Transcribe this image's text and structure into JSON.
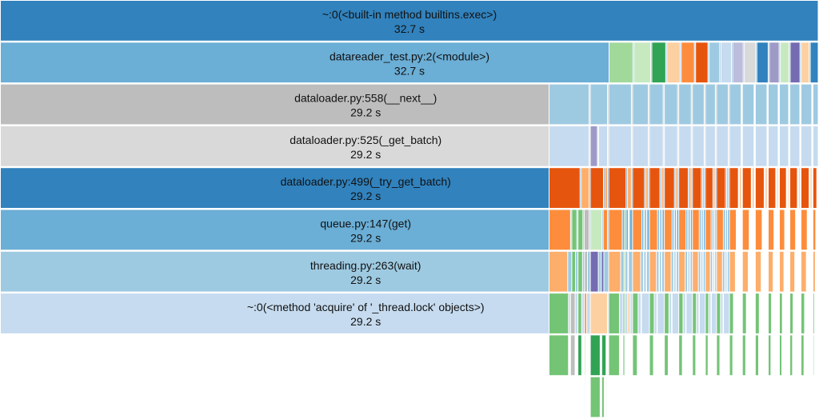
{
  "chart_data": {
    "type": "icicle",
    "title": "",
    "unit": "s",
    "total_time": 32.7,
    "levels": [
      {
        "name": "~:0(<built-in method builtins.exec>)",
        "time": 32.7,
        "label_time": "32.7 s",
        "color": "#3182bd"
      },
      {
        "name": "datareader_test.py:2(<module>)",
        "time": 32.7,
        "label_time": "32.7 s",
        "color": "#6baed6"
      },
      {
        "name": "dataloader.py:558(__next__)",
        "time": 29.2,
        "label_time": "29.2 s",
        "color": "#bdbdbd"
      },
      {
        "name": "dataloader.py:525(_get_batch)",
        "time": 29.2,
        "label_time": "29.2 s",
        "color": "#d9d9d9"
      },
      {
        "name": "dataloader.py:499(_try_get_batch)",
        "time": 29.2,
        "label_time": "29.2 s",
        "color": "#3182bd"
      },
      {
        "name": "queue.py:147(get)",
        "time": 29.2,
        "label_time": "29.2 s",
        "color": "#6baed6"
      },
      {
        "name": "threading.py:263(wait)",
        "time": 29.2,
        "label_time": "29.2 s",
        "color": "#9ecae1"
      },
      {
        "name": "~:0(<method 'acquire' of '_thread.lock' objects>)",
        "time": 29.2,
        "label_time": "29.2 s",
        "color": "#c6dbef"
      }
    ],
    "module_siblings_colors": [
      "#a1d99b",
      "#c7e9c0",
      "#31a354",
      "#fdd0a2",
      "#fd8d3c",
      "#e6550d",
      "#9ecae1",
      "#c6dbef",
      "#bcbddc",
      "#d9d9d9",
      "#3182bd",
      "#9e9ac8",
      "#c7e9c0",
      "#756bb1",
      "#fdd0a2",
      "#3182bd"
    ],
    "module_siblings_times": [
      0.96,
      0.68,
      0.58,
      0.55,
      0.55,
      0.52,
      0.45,
      0.45,
      0.45,
      0.48,
      0.48,
      0.42,
      0.38,
      0.42,
      0.35,
      0.35
    ],
    "next_siblings_times": [
      1.66,
      0.74,
      0.96,
      0.68,
      0.6,
      0.58,
      0.55,
      0.52,
      0.45,
      0.52,
      0.52,
      0.52,
      0.52,
      0.45,
      0.42,
      0.45,
      0.48,
      0.26
    ],
    "palette": {
      "blue_dark": "#3182bd",
      "blue_mid": "#6baed6",
      "blue_light": "#9ecae1",
      "blue_pale": "#c6dbef",
      "orange_dark": "#e6550d",
      "orange_mid": "#fd8d3c",
      "orange_light": "#fdae6b",
      "orange_pale": "#fdd0a2",
      "green_dark": "#31a354",
      "green_mid": "#74c476",
      "green_light": "#a1d99b",
      "green_pale": "#c7e9c0",
      "purple_dark": "#756bb1",
      "purple_mid": "#9e9ac8",
      "purple_light": "#bcbddc",
      "gray_mid": "#bdbdbd",
      "gray_light": "#d9d9d9"
    }
  }
}
